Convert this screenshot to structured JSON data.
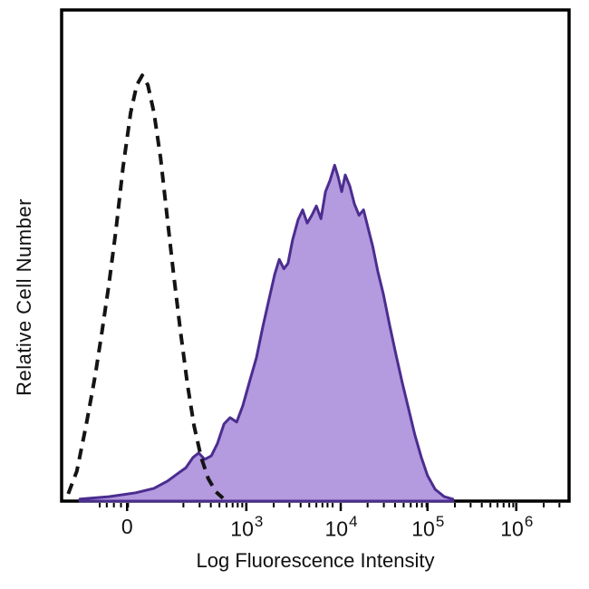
{
  "figure": {
    "background": "#ffffff",
    "frame_color": "#000000"
  },
  "chart_data": {
    "type": "area",
    "title": "",
    "xlabel": "Log Fluorescence Intensity",
    "ylabel": "Relative Cell Number",
    "x_axis": {
      "scale": "biexponential-log",
      "major_ticks": [
        {
          "base": "0",
          "exp": "",
          "u": 0.129
        },
        {
          "base": "10",
          "exp": "3",
          "u": 0.364
        },
        {
          "base": "10",
          "exp": "4",
          "u": 0.55
        },
        {
          "base": "10",
          "exp": "5",
          "u": 0.721
        },
        {
          "base": "10",
          "exp": "6",
          "u": 0.896
        }
      ],
      "minor_ticks": [
        0.075,
        0.089,
        0.103,
        0.117,
        0.131,
        0.24,
        0.272,
        0.294,
        0.311,
        0.325,
        0.337,
        0.347,
        0.356,
        0.418,
        0.449,
        0.471,
        0.488,
        0.502,
        0.514,
        0.524,
        0.534,
        0.603,
        0.635,
        0.657,
        0.674,
        0.688,
        0.7,
        0.71,
        0.719,
        0.775,
        0.806,
        0.828,
        0.845,
        0.859,
        0.871,
        0.882,
        0.89,
        0.95,
        0.981
      ]
    },
    "y_axis": {
      "ticks": [],
      "range_normalized": [
        0,
        1
      ]
    },
    "legend": "none",
    "series": [
      {
        "name": "dashed-outline-histogram",
        "style": "dashed",
        "color": "#141414",
        "points": [
          [
            0.013,
            0.015
          ],
          [
            0.03,
            0.061
          ],
          [
            0.048,
            0.153
          ],
          [
            0.066,
            0.255
          ],
          [
            0.08,
            0.348
          ],
          [
            0.093,
            0.44
          ],
          [
            0.107,
            0.551
          ],
          [
            0.121,
            0.68
          ],
          [
            0.136,
            0.791
          ],
          [
            0.148,
            0.847
          ],
          [
            0.159,
            0.867
          ],
          [
            0.17,
            0.847
          ],
          [
            0.182,
            0.791
          ],
          [
            0.195,
            0.699
          ],
          [
            0.207,
            0.588
          ],
          [
            0.22,
            0.468
          ],
          [
            0.234,
            0.348
          ],
          [
            0.248,
            0.237
          ],
          [
            0.261,
            0.153
          ],
          [
            0.275,
            0.089
          ],
          [
            0.289,
            0.046
          ],
          [
            0.304,
            0.019
          ],
          [
            0.318,
            0.006
          ]
        ]
      },
      {
        "name": "filled-purple-histogram",
        "style": "filled",
        "fill": "#b49ade",
        "stroke": "#4b2d90",
        "points": [
          [
            0.036,
            0.004
          ],
          [
            0.093,
            0.009
          ],
          [
            0.146,
            0.017
          ],
          [
            0.182,
            0.026
          ],
          [
            0.209,
            0.041
          ],
          [
            0.229,
            0.056
          ],
          [
            0.245,
            0.068
          ],
          [
            0.259,
            0.089
          ],
          [
            0.27,
            0.098
          ],
          [
            0.282,
            0.085
          ],
          [
            0.295,
            0.092
          ],
          [
            0.307,
            0.117
          ],
          [
            0.32,
            0.157
          ],
          [
            0.332,
            0.17
          ],
          [
            0.345,
            0.161
          ],
          [
            0.357,
            0.194
          ],
          [
            0.371,
            0.246
          ],
          [
            0.384,
            0.292
          ],
          [
            0.396,
            0.353
          ],
          [
            0.409,
            0.412
          ],
          [
            0.42,
            0.462
          ],
          [
            0.429,
            0.492
          ],
          [
            0.438,
            0.473
          ],
          [
            0.446,
            0.484
          ],
          [
            0.455,
            0.531
          ],
          [
            0.466,
            0.573
          ],
          [
            0.475,
            0.593
          ],
          [
            0.484,
            0.566
          ],
          [
            0.493,
            0.582
          ],
          [
            0.502,
            0.601
          ],
          [
            0.511,
            0.575
          ],
          [
            0.52,
            0.63
          ],
          [
            0.529,
            0.653
          ],
          [
            0.538,
            0.684
          ],
          [
            0.545,
            0.66
          ],
          [
            0.552,
            0.63
          ],
          [
            0.559,
            0.664
          ],
          [
            0.568,
            0.641
          ],
          [
            0.577,
            0.605
          ],
          [
            0.586,
            0.582
          ],
          [
            0.595,
            0.593
          ],
          [
            0.604,
            0.556
          ],
          [
            0.613,
            0.519
          ],
          [
            0.623,
            0.468
          ],
          [
            0.634,
            0.422
          ],
          [
            0.646,
            0.36
          ],
          [
            0.659,
            0.298
          ],
          [
            0.671,
            0.242
          ],
          [
            0.684,
            0.187
          ],
          [
            0.696,
            0.135
          ],
          [
            0.709,
            0.089
          ],
          [
            0.721,
            0.052
          ],
          [
            0.736,
            0.024
          ],
          [
            0.754,
            0.009
          ],
          [
            0.771,
            0.004
          ]
        ]
      }
    ]
  }
}
